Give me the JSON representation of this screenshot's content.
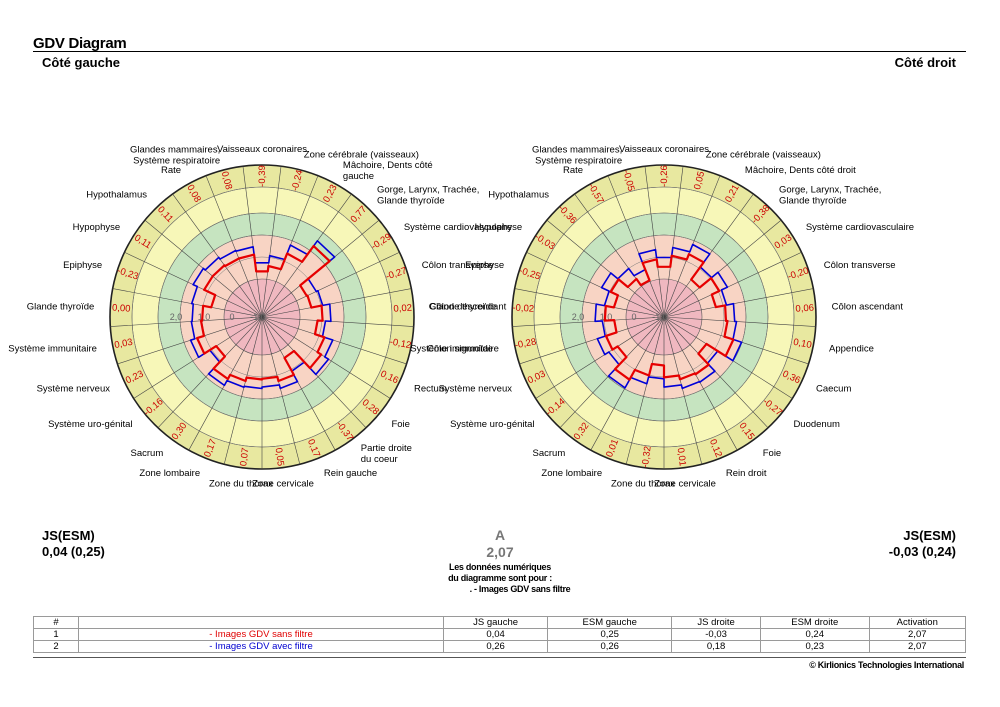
{
  "header": {
    "title": "GDV Diagram",
    "left_side": "Côté gauche",
    "right_side": "Côté droit"
  },
  "scale_labels": [
    "2,0",
    "1,0",
    "0",
    "-1,0"
  ],
  "colors": {
    "ring_yellow_dark": "#e8e8a0",
    "ring_yellow": "#f7f7b8",
    "ring_green": "#c6e4c0",
    "ring_salmon": "#f8d4c4",
    "ring_pink": "#f0b8c0",
    "series_red": "#e60000",
    "series_blue": "#0000d8",
    "value_text": "#cc0000"
  },
  "chart_data": [
    {
      "type": "radar",
      "side": "Côté gauche",
      "sectors": [
        {
          "label": "Vaisseaux coronaires",
          "value": "-0,39"
        },
        {
          "label": "Glandes mammaires, Système respiratoire",
          "value": "0,08"
        },
        {
          "label": "Rate",
          "value": "0,08"
        },
        {
          "label": "Hypothalamus",
          "value": "0,11"
        },
        {
          "label": "Hypophyse",
          "value": "0,11"
        },
        {
          "label": "Epiphyse",
          "value": "-0,23"
        },
        {
          "label": "Glande thyroïde",
          "value": "0,00"
        },
        {
          "label": "Système immunitaire",
          "value": "0,03"
        },
        {
          "label": "Système nerveux",
          "value": "0,23"
        },
        {
          "label": "Système uro-génital",
          "value": "-0,16"
        },
        {
          "label": "Sacrum",
          "value": "0,30"
        },
        {
          "label": "Zone lombaire",
          "value": "0,17"
        },
        {
          "label": "Zone du thorax",
          "value": "0,07"
        },
        {
          "label": "Zone cervicale",
          "value": "0,05"
        },
        {
          "label": "Rein gauche",
          "value": "0,17"
        },
        {
          "label": "Partie droite du coeur",
          "value": "-0,37"
        },
        {
          "label": "Foie",
          "value": "0,28"
        },
        {
          "label": "Rectum",
          "value": "0,16"
        },
        {
          "label": "Côlon sigmoïde",
          "value": "-0,12"
        },
        {
          "label": "Côlon descendant",
          "value": "0,02"
        },
        {
          "label": "Côlon transverse",
          "value": "-0,27"
        },
        {
          "label": "Système cardiovasculaire",
          "value": "-0,29"
        },
        {
          "label": "Gorge, Larynx, Trachée, Glande thyroïde",
          "value": "0,77"
        },
        {
          "label": "Mâchoire, Dents côté gauche",
          "value": "0,23"
        },
        {
          "label": "Zone cérébrale (vaisseaux)",
          "value": "-0,24"
        }
      ],
      "series": [
        {
          "name": "Images GDV sans filtre",
          "values": [
            -0.39,
            0.08,
            0.08,
            0.11,
            0.11,
            -0.23,
            0.0,
            0.03,
            0.23,
            -0.16,
            0.3,
            0.17,
            0.07,
            0.05,
            0.17,
            -0.37,
            0.28,
            0.16,
            -0.12,
            0.02,
            -0.27,
            -0.29,
            0.77,
            0.23,
            -0.24
          ]
        },
        {
          "name": "Images GDV avec filtre",
          "values": [
            -0.15,
            0.3,
            0.32,
            0.38,
            0.45,
            0.32,
            0.28,
            0.3,
            0.42,
            0.05,
            0.5,
            0.35,
            0.32,
            0.28,
            0.38,
            0.05,
            0.52,
            0.4,
            0.1,
            0.25,
            0.05,
            0.0,
            0.95,
            0.48,
            0.05
          ]
        }
      ],
      "rlim": [
        -3,
        2
      ]
    },
    {
      "type": "radar",
      "side": "Côté droit",
      "sectors": [
        {
          "label": "Vaisseaux coronaires",
          "value": "-0,26"
        },
        {
          "label": "Zone cérébrale (vaisseaux)",
          "value": "0,05"
        },
        {
          "label": "Mâchoire, Dents côté droit",
          "value": "0,21"
        },
        {
          "label": "Gorge, Larynx, Trachée, Glande thyroïde",
          "value": "-0,38"
        },
        {
          "label": "Système cardiovasculaire",
          "value": "0,03"
        },
        {
          "label": "Côlon transverse",
          "value": "-0,20"
        },
        {
          "label": "Côlon ascendant",
          "value": "0,06"
        },
        {
          "label": "Appendice",
          "value": "0,10"
        },
        {
          "label": "Caecum",
          "value": "0,36"
        },
        {
          "label": "Duodenum",
          "value": "-0,27"
        },
        {
          "label": "Foie",
          "value": "0,15"
        },
        {
          "label": "Rein droit",
          "value": "0,12"
        },
        {
          "label": "Zone cervicale",
          "value": "0,01"
        },
        {
          "label": "Zone du thorax",
          "value": "-0,32"
        },
        {
          "label": "Zone lombaire",
          "value": "0,01"
        },
        {
          "label": "Sacrum",
          "value": "0,32"
        },
        {
          "label": "Système uro-génital",
          "value": "-0,14"
        },
        {
          "label": "Système nerveux",
          "value": "0,03"
        },
        {
          "label": "Système immunitaire",
          "value": "-0,28"
        },
        {
          "label": "Glande thyroïde",
          "value": "-0,02"
        },
        {
          "label": "Epiphyse",
          "value": "-0,25"
        },
        {
          "label": "Hypophyse",
          "value": "-0,03"
        },
        {
          "label": "Hypothalamus",
          "value": "-0,36"
        },
        {
          "label": "Rate",
          "value": "-0,57"
        },
        {
          "label": "Glandes mammaires, Système respiratoire",
          "value": "-0,05"
        }
      ],
      "series": [
        {
          "name": "Images GDV sans filtre",
          "values": [
            -0.26,
            0.05,
            0.21,
            -0.38,
            0.03,
            -0.2,
            0.06,
            0.1,
            0.36,
            -0.27,
            0.15,
            0.12,
            0.01,
            -0.32,
            0.01,
            0.32,
            -0.14,
            0.03,
            -0.28,
            -0.02,
            -0.25,
            -0.03,
            -0.36,
            -0.57,
            -0.05
          ]
        },
        {
          "name": "Images GDV avec filtre",
          "values": [
            0.0,
            0.28,
            0.5,
            0.05,
            0.28,
            0.1,
            0.3,
            0.35,
            0.6,
            0.1,
            0.4,
            0.38,
            0.28,
            0.05,
            0.25,
            0.58,
            0.15,
            0.28,
            0.05,
            0.25,
            0.02,
            0.25,
            0.0,
            -0.25,
            0.22
          ]
        }
      ],
      "rlim": [
        -3,
        2
      ]
    }
  ],
  "stats": {
    "js_label_left": "JS(ESM)",
    "js_value_left": "0,04 (0,25)",
    "js_label_right": "JS(ESM)",
    "js_value_right": "-0,03 (0,24)",
    "activation_label": "A",
    "activation_value": "2,07",
    "note_line1": "Les données numériques",
    "note_line2": "du diagramme sont pour :",
    "note_line3": ". - Images GDV sans filtre"
  },
  "table": {
    "headers": [
      "#",
      "",
      "JS gauche",
      "ESM gauche",
      "JS droite",
      "ESM droite",
      "Activation"
    ],
    "rows": [
      {
        "num": "1",
        "name": "- Images GDV sans filtre",
        "js_g": "0,04",
        "esm_g": "0,25",
        "js_d": "-0,03",
        "esm_d": "0,24",
        "act": "2,07"
      },
      {
        "num": "2",
        "name": "- Images GDV avec filtre",
        "js_g": "0,26",
        "esm_g": "0,26",
        "js_d": "0,18",
        "esm_d": "0,23",
        "act": "2,07"
      }
    ]
  },
  "footer": {
    "copyright": "© Kirlionics Technologies International"
  }
}
